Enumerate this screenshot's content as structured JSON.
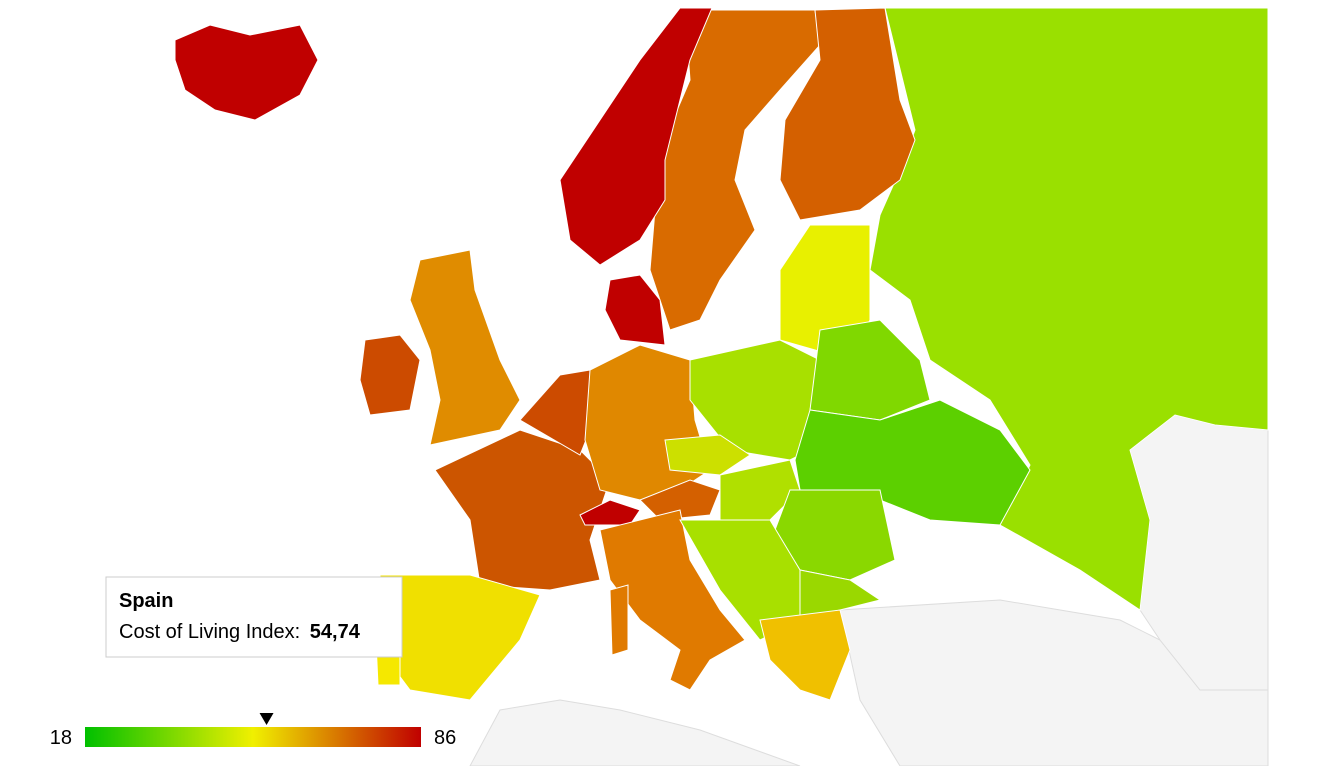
{
  "tooltip": {
    "name": "Spain",
    "metric": "Cost of Living Index:",
    "value": 54.74,
    "value_label": "54,74"
  },
  "legend": {
    "min": 18,
    "max": 86,
    "colors": [
      "#00c000",
      "#f0f000",
      "#c00000"
    ]
  }
}
